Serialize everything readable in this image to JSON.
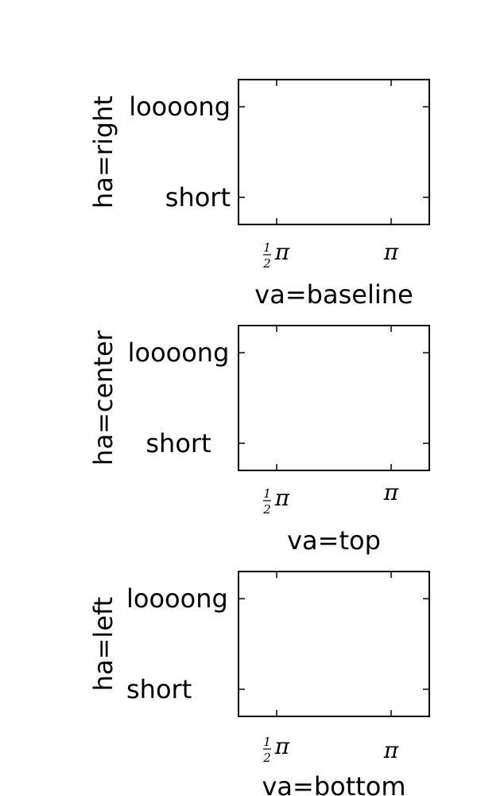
{
  "chart_data": [
    {
      "type": "line",
      "ylabel": "ha=right",
      "xlabel": "va=baseline",
      "x_ticks": [
        {
          "value": 0.5,
          "num": "1",
          "den": "2",
          "sym": "π"
        },
        {
          "value": 1.0,
          "sym": "π"
        }
      ],
      "y_ticks": [
        {
          "value": 1,
          "label": "short"
        },
        {
          "value": 2,
          "label": "loooong"
        }
      ],
      "xtick_va": "baseline",
      "ytick_ha": "right",
      "series": []
    },
    {
      "type": "line",
      "ylabel": "ha=center",
      "xlabel": "va=top",
      "x_ticks": [
        {
          "value": 0.5,
          "num": "1",
          "den": "2",
          "sym": "π"
        },
        {
          "value": 1.0,
          "sym": "π"
        }
      ],
      "y_ticks": [
        {
          "value": 1,
          "label": "short"
        },
        {
          "value": 2,
          "label": "loooong"
        }
      ],
      "xtick_va": "top",
      "ytick_ha": "center",
      "series": []
    },
    {
      "type": "line",
      "ylabel": "ha=left",
      "xlabel": "va=bottom",
      "x_ticks": [
        {
          "value": 0.5,
          "num": "1",
          "den": "2",
          "sym": "π"
        },
        {
          "value": 1.0,
          "sym": "π"
        }
      ],
      "y_ticks": [
        {
          "value": 1,
          "label": "short"
        },
        {
          "value": 2,
          "label": "loooong"
        }
      ],
      "xtick_va": "bottom",
      "ytick_ha": "left",
      "series": []
    }
  ]
}
